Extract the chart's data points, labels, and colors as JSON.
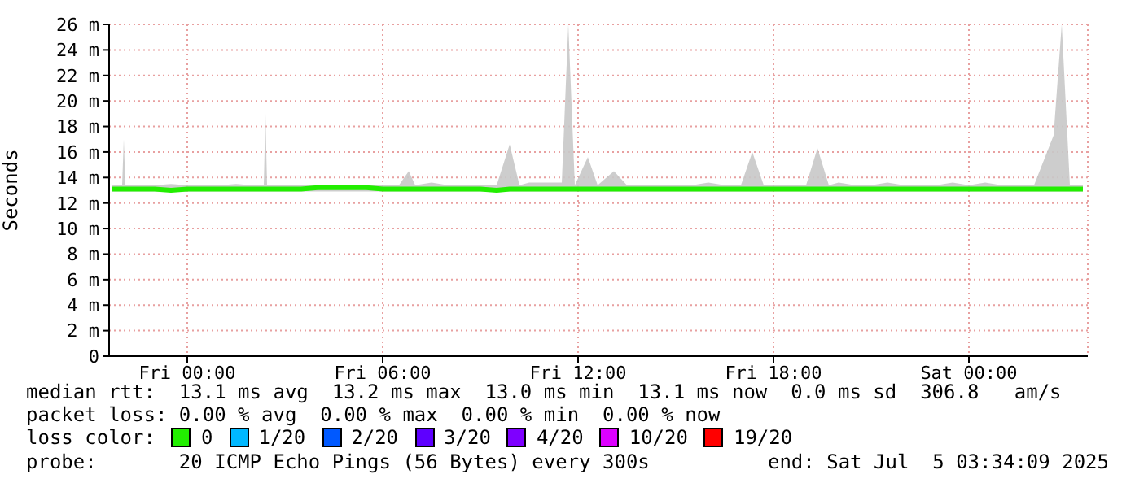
{
  "chart_data": {
    "type": "line",
    "ylabel": "Seconds",
    "legend_title": "loss color:",
    "x": [
      "2025-07-03T21:42",
      "2025-07-03T22:00",
      "2025-07-03T22:03",
      "2025-07-03T22:06",
      "2025-07-03T22:30",
      "2025-07-03T23:00",
      "2025-07-03T23:30",
      "2025-07-04T00:00",
      "2025-07-04T00:30",
      "2025-07-04T01:00",
      "2025-07-04T01:30",
      "2025-07-04T02:00",
      "2025-07-04T02:21",
      "2025-07-04T02:24",
      "2025-07-04T02:27",
      "2025-07-04T03:00",
      "2025-07-04T03:30",
      "2025-07-04T04:00",
      "2025-07-04T04:30",
      "2025-07-04T05:00",
      "2025-07-04T05:30",
      "2025-07-04T06:00",
      "2025-07-04T06:30",
      "2025-07-04T06:48",
      "2025-07-04T07:00",
      "2025-07-04T07:30",
      "2025-07-04T08:00",
      "2025-07-04T08:30",
      "2025-07-04T09:00",
      "2025-07-04T09:30",
      "2025-07-04T09:54",
      "2025-07-04T10:12",
      "2025-07-04T10:30",
      "2025-07-04T11:00",
      "2025-07-04T11:30",
      "2025-07-04T11:42",
      "2025-07-04T11:54",
      "2025-07-04T12:18",
      "2025-07-04T12:36",
      "2025-07-04T13:06",
      "2025-07-04T13:30",
      "2025-07-04T14:00",
      "2025-07-04T14:30",
      "2025-07-04T15:00",
      "2025-07-04T15:30",
      "2025-07-04T16:00",
      "2025-07-04T16:30",
      "2025-07-04T17:00",
      "2025-07-04T17:21",
      "2025-07-04T17:42",
      "2025-07-04T18:00",
      "2025-07-04T18:30",
      "2025-07-04T19:00",
      "2025-07-04T19:21",
      "2025-07-04T19:42",
      "2025-07-04T20:00",
      "2025-07-04T20:30",
      "2025-07-04T21:00",
      "2025-07-04T21:30",
      "2025-07-04T22:00",
      "2025-07-04T22:30",
      "2025-07-04T23:00",
      "2025-07-04T23:30",
      "2025-07-05T00:00",
      "2025-07-05T00:30",
      "2025-07-05T01:00",
      "2025-07-05T01:30",
      "2025-07-05T02:00",
      "2025-07-05T02:36",
      "2025-07-05T02:51",
      "2025-07-05T03:06",
      "2025-07-05T03:30"
    ],
    "series": [
      {
        "name": "0",
        "color": "#22ee00",
        "values": [
          13.1,
          13.1,
          13.1,
          13.1,
          13.1,
          13.1,
          13.0,
          13.1,
          13.1,
          13.1,
          13.1,
          13.1,
          13.1,
          13.1,
          13.1,
          13.1,
          13.1,
          13.2,
          13.2,
          13.2,
          13.2,
          13.1,
          13.1,
          13.1,
          13.1,
          13.1,
          13.1,
          13.1,
          13.1,
          13.0,
          13.1,
          13.1,
          13.1,
          13.1,
          13.1,
          13.1,
          13.1,
          13.1,
          13.1,
          13.1,
          13.1,
          13.1,
          13.1,
          13.1,
          13.1,
          13.1,
          13.1,
          13.1,
          13.1,
          13.1,
          13.1,
          13.1,
          13.1,
          13.1,
          13.1,
          13.1,
          13.1,
          13.1,
          13.1,
          13.1,
          13.1,
          13.1,
          13.1,
          13.1,
          13.1,
          13.1,
          13.1,
          13.1,
          13.1,
          13.1,
          13.1,
          13.1
        ],
        "lower": [
          12.9,
          12.9,
          12.9,
          12.9,
          12.9,
          12.9,
          12.9,
          12.9,
          12.9,
          12.9,
          12.9,
          12.9,
          12.9,
          12.9,
          12.9,
          12.9,
          12.9,
          12.9,
          12.9,
          12.9,
          12.9,
          12.9,
          12.9,
          12.9,
          12.9,
          12.9,
          12.9,
          12.9,
          12.9,
          12.9,
          12.9,
          12.9,
          12.9,
          12.9,
          12.9,
          12.9,
          12.9,
          12.9,
          12.9,
          12.9,
          12.9,
          12.9,
          12.9,
          12.9,
          12.9,
          12.9,
          12.9,
          12.9,
          12.9,
          12.9,
          12.9,
          12.9,
          12.9,
          12.9,
          12.9,
          12.9,
          12.9,
          12.9,
          12.9,
          12.9,
          12.9,
          12.9,
          12.9,
          12.9,
          12.9,
          12.9,
          12.9,
          12.9,
          12.9,
          12.9,
          12.9,
          12.9
        ],
        "upper": [
          13.4,
          13.4,
          17.0,
          13.4,
          13.4,
          13.4,
          13.5,
          13.4,
          13.4,
          13.4,
          13.5,
          13.4,
          13.4,
          19.0,
          13.4,
          13.4,
          13.4,
          13.4,
          13.4,
          13.4,
          13.4,
          13.4,
          13.4,
          14.5,
          13.4,
          13.6,
          13.4,
          13.4,
          13.4,
          13.4,
          16.6,
          13.4,
          13.6,
          13.6,
          13.6,
          26.0,
          13.4,
          15.6,
          13.4,
          14.5,
          13.4,
          13.4,
          13.4,
          13.4,
          13.4,
          13.6,
          13.4,
          13.4,
          16.0,
          13.4,
          13.4,
          13.4,
          13.4,
          16.3,
          13.4,
          13.6,
          13.4,
          13.4,
          13.6,
          13.4,
          13.4,
          13.4,
          13.6,
          13.4,
          13.6,
          13.4,
          13.4,
          13.4,
          17.3,
          26.0,
          13.4,
          13.4
        ]
      },
      {
        "name": "1/20",
        "color": "#00b8ff",
        "values": [
          null,
          null,
          null,
          null,
          null,
          null,
          null,
          null,
          null,
          null,
          null,
          null,
          null,
          null,
          null,
          null,
          null,
          null,
          null,
          null,
          null,
          null,
          null,
          null,
          null,
          null,
          null,
          null,
          null,
          null,
          null,
          null,
          null,
          null,
          null,
          null,
          null,
          null,
          null,
          null,
          null,
          null,
          null,
          null,
          null,
          null,
          null,
          null,
          null,
          null,
          null,
          null,
          null,
          null,
          null,
          null,
          null,
          null,
          null,
          null,
          null,
          null,
          null,
          null,
          null,
          null,
          null,
          null,
          null,
          null,
          null,
          null
        ]
      },
      {
        "name": "2/20",
        "color": "#0059ff",
        "values": [
          null,
          null,
          null,
          null,
          null,
          null,
          null,
          null,
          null,
          null,
          null,
          null,
          null,
          null,
          null,
          null,
          null,
          null,
          null,
          null,
          null,
          null,
          null,
          null,
          null,
          null,
          null,
          null,
          null,
          null,
          null,
          null,
          null,
          null,
          null,
          null,
          null,
          null,
          null,
          null,
          null,
          null,
          null,
          null,
          null,
          null,
          null,
          null,
          null,
          null,
          null,
          null,
          null,
          null,
          null,
          null,
          null,
          null,
          null,
          null,
          null,
          null,
          null,
          null,
          null,
          null,
          null,
          null,
          null,
          null,
          null,
          null
        ]
      },
      {
        "name": "3/20",
        "color": "#5e00ff",
        "values": [
          null,
          null,
          null,
          null,
          null,
          null,
          null,
          null,
          null,
          null,
          null,
          null,
          null,
          null,
          null,
          null,
          null,
          null,
          null,
          null,
          null,
          null,
          null,
          null,
          null,
          null,
          null,
          null,
          null,
          null,
          null,
          null,
          null,
          null,
          null,
          null,
          null,
          null,
          null,
          null,
          null,
          null,
          null,
          null,
          null,
          null,
          null,
          null,
          null,
          null,
          null,
          null,
          null,
          null,
          null,
          null,
          null,
          null,
          null,
          null,
          null,
          null,
          null,
          null,
          null,
          null,
          null,
          null,
          null,
          null,
          null,
          null
        ]
      },
      {
        "name": "4/20",
        "color": "#7e00ff",
        "values": [
          null,
          null,
          null,
          null,
          null,
          null,
          null,
          null,
          null,
          null,
          null,
          null,
          null,
          null,
          null,
          null,
          null,
          null,
          null,
          null,
          null,
          null,
          null,
          null,
          null,
          null,
          null,
          null,
          null,
          null,
          null,
          null,
          null,
          null,
          null,
          null,
          null,
          null,
          null,
          null,
          null,
          null,
          null,
          null,
          null,
          null,
          null,
          null,
          null,
          null,
          null,
          null,
          null,
          null,
          null,
          null,
          null,
          null,
          null,
          null,
          null,
          null,
          null,
          null,
          null,
          null,
          null,
          null,
          null,
          null,
          null,
          null
        ]
      },
      {
        "name": "10/20",
        "color": "#dd00ff",
        "values": [
          null,
          null,
          null,
          null,
          null,
          null,
          null,
          null,
          null,
          null,
          null,
          null,
          null,
          null,
          null,
          null,
          null,
          null,
          null,
          null,
          null,
          null,
          null,
          null,
          null,
          null,
          null,
          null,
          null,
          null,
          null,
          null,
          null,
          null,
          null,
          null,
          null,
          null,
          null,
          null,
          null,
          null,
          null,
          null,
          null,
          null,
          null,
          null,
          null,
          null,
          null,
          null,
          null,
          null,
          null,
          null,
          null,
          null,
          null,
          null,
          null,
          null,
          null,
          null,
          null,
          null,
          null,
          null,
          null,
          null,
          null,
          null
        ]
      },
      {
        "name": "19/20",
        "color": "#ff0000",
        "values": [
          null,
          null,
          null,
          null,
          null,
          null,
          null,
          null,
          null,
          null,
          null,
          null,
          null,
          null,
          null,
          null,
          null,
          null,
          null,
          null,
          null,
          null,
          null,
          null,
          null,
          null,
          null,
          null,
          null,
          null,
          null,
          null,
          null,
          null,
          null,
          null,
          null,
          null,
          null,
          null,
          null,
          null,
          null,
          null,
          null,
          null,
          null,
          null,
          null,
          null,
          null,
          null,
          null,
          null,
          null,
          null,
          null,
          null,
          null,
          null,
          null,
          null,
          null,
          null,
          null,
          null,
          null,
          null,
          null,
          null,
          null,
          null
        ]
      }
    ],
    "xlim": [
      "2025-07-03T21:36",
      "2025-07-05T03:39"
    ],
    "xticks": [
      {
        "value": "2025-07-04T00:00",
        "label": "Fri 00:00"
      },
      {
        "value": "2025-07-04T06:00",
        "label": "Fri 06:00"
      },
      {
        "value": "2025-07-04T12:00",
        "label": "Fri 12:00"
      },
      {
        "value": "2025-07-04T18:00",
        "label": "Fri 18:00"
      },
      {
        "value": "2025-07-05T00:00",
        "label": "Sat 00:00"
      }
    ],
    "ylim": [
      0,
      26
    ],
    "yticks": [
      0,
      {
        "value": 2,
        "label": "2 m"
      },
      {
        "value": 4,
        "label": "4 m"
      },
      {
        "value": 6,
        "label": "6 m"
      },
      {
        "value": 8,
        "label": "8 m"
      },
      {
        "value": 10,
        "label": "10 m"
      },
      {
        "value": 12,
        "label": "12 m"
      },
      {
        "value": 14,
        "label": "14 m"
      },
      {
        "value": 16,
        "label": "16 m"
      },
      {
        "value": 18,
        "label": "18 m"
      },
      {
        "value": 20,
        "label": "20 m"
      },
      {
        "value": 22,
        "label": "22 m"
      },
      {
        "value": 24,
        "label": "24 m"
      },
      {
        "value": 26,
        "label": "26 m"
      }
    ],
    "grid": true,
    "legend": "bottom",
    "annotations": [
      "median rtt:  13.1 ms avg  13.2 ms max  13.0 ms min  13.1 ms now  0.0 ms sd  306.8   am/s",
      "packet loss: 0.00 % avg  0.00 % max  0.00 % min  0.00 % now",
      "probe:       20 ICMP Echo Pings (56 Bytes) every 300s",
      "end: Sat Jul  5 03:34:09 2025"
    ]
  }
}
